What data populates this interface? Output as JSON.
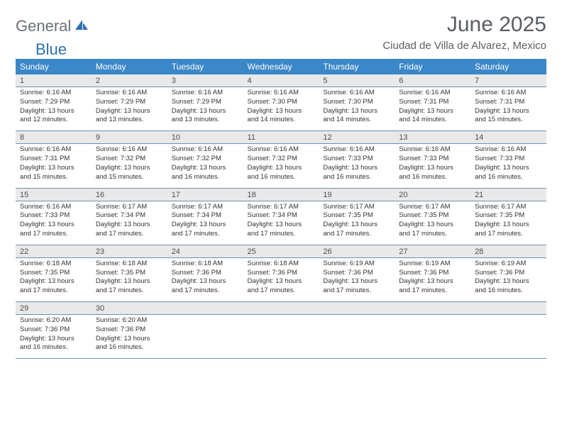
{
  "brand": {
    "part1": "General",
    "part2": "Blue"
  },
  "title": "June 2025",
  "location": "Ciudad de Villa de Alvarez, Mexico",
  "colors": {
    "header_bg": "#3b87c8",
    "header_text": "#ffffff",
    "daynum_bg": "#e9e9e9",
    "border": "#6d90af",
    "brand_gray": "#6c7178",
    "brand_blue": "#2f6fb3"
  },
  "weekdays": [
    "Sunday",
    "Monday",
    "Tuesday",
    "Wednesday",
    "Thursday",
    "Friday",
    "Saturday"
  ],
  "days": [
    {
      "n": 1,
      "sunrise": "6:16 AM",
      "sunset": "7:29 PM",
      "dlh": 13,
      "dlm": 12
    },
    {
      "n": 2,
      "sunrise": "6:16 AM",
      "sunset": "7:29 PM",
      "dlh": 13,
      "dlm": 13
    },
    {
      "n": 3,
      "sunrise": "6:16 AM",
      "sunset": "7:29 PM",
      "dlh": 13,
      "dlm": 13
    },
    {
      "n": 4,
      "sunrise": "6:16 AM",
      "sunset": "7:30 PM",
      "dlh": 13,
      "dlm": 14
    },
    {
      "n": 5,
      "sunrise": "6:16 AM",
      "sunset": "7:30 PM",
      "dlh": 13,
      "dlm": 14
    },
    {
      "n": 6,
      "sunrise": "6:16 AM",
      "sunset": "7:31 PM",
      "dlh": 13,
      "dlm": 14
    },
    {
      "n": 7,
      "sunrise": "6:16 AM",
      "sunset": "7:31 PM",
      "dlh": 13,
      "dlm": 15
    },
    {
      "n": 8,
      "sunrise": "6:16 AM",
      "sunset": "7:31 PM",
      "dlh": 13,
      "dlm": 15
    },
    {
      "n": 9,
      "sunrise": "6:16 AM",
      "sunset": "7:32 PM",
      "dlh": 13,
      "dlm": 15
    },
    {
      "n": 10,
      "sunrise": "6:16 AM",
      "sunset": "7:32 PM",
      "dlh": 13,
      "dlm": 16
    },
    {
      "n": 11,
      "sunrise": "6:16 AM",
      "sunset": "7:32 PM",
      "dlh": 13,
      "dlm": 16
    },
    {
      "n": 12,
      "sunrise": "6:16 AM",
      "sunset": "7:33 PM",
      "dlh": 13,
      "dlm": 16
    },
    {
      "n": 13,
      "sunrise": "6:16 AM",
      "sunset": "7:33 PM",
      "dlh": 13,
      "dlm": 16
    },
    {
      "n": 14,
      "sunrise": "6:16 AM",
      "sunset": "7:33 PM",
      "dlh": 13,
      "dlm": 16
    },
    {
      "n": 15,
      "sunrise": "6:16 AM",
      "sunset": "7:33 PM",
      "dlh": 13,
      "dlm": 17
    },
    {
      "n": 16,
      "sunrise": "6:17 AM",
      "sunset": "7:34 PM",
      "dlh": 13,
      "dlm": 17
    },
    {
      "n": 17,
      "sunrise": "6:17 AM",
      "sunset": "7:34 PM",
      "dlh": 13,
      "dlm": 17
    },
    {
      "n": 18,
      "sunrise": "6:17 AM",
      "sunset": "7:34 PM",
      "dlh": 13,
      "dlm": 17
    },
    {
      "n": 19,
      "sunrise": "6:17 AM",
      "sunset": "7:35 PM",
      "dlh": 13,
      "dlm": 17
    },
    {
      "n": 20,
      "sunrise": "6:17 AM",
      "sunset": "7:35 PM",
      "dlh": 13,
      "dlm": 17
    },
    {
      "n": 21,
      "sunrise": "6:17 AM",
      "sunset": "7:35 PM",
      "dlh": 13,
      "dlm": 17
    },
    {
      "n": 22,
      "sunrise": "6:18 AM",
      "sunset": "7:35 PM",
      "dlh": 13,
      "dlm": 17
    },
    {
      "n": 23,
      "sunrise": "6:18 AM",
      "sunset": "7:35 PM",
      "dlh": 13,
      "dlm": 17
    },
    {
      "n": 24,
      "sunrise": "6:18 AM",
      "sunset": "7:36 PM",
      "dlh": 13,
      "dlm": 17
    },
    {
      "n": 25,
      "sunrise": "6:18 AM",
      "sunset": "7:36 PM",
      "dlh": 13,
      "dlm": 17
    },
    {
      "n": 26,
      "sunrise": "6:19 AM",
      "sunset": "7:36 PM",
      "dlh": 13,
      "dlm": 17
    },
    {
      "n": 27,
      "sunrise": "6:19 AM",
      "sunset": "7:36 PM",
      "dlh": 13,
      "dlm": 17
    },
    {
      "n": 28,
      "sunrise": "6:19 AM",
      "sunset": "7:36 PM",
      "dlh": 13,
      "dlm": 16
    },
    {
      "n": 29,
      "sunrise": "6:20 AM",
      "sunset": "7:36 PM",
      "dlh": 13,
      "dlm": 16
    },
    {
      "n": 30,
      "sunrise": "6:20 AM",
      "sunset": "7:36 PM",
      "dlh": 13,
      "dlm": 16
    }
  ]
}
